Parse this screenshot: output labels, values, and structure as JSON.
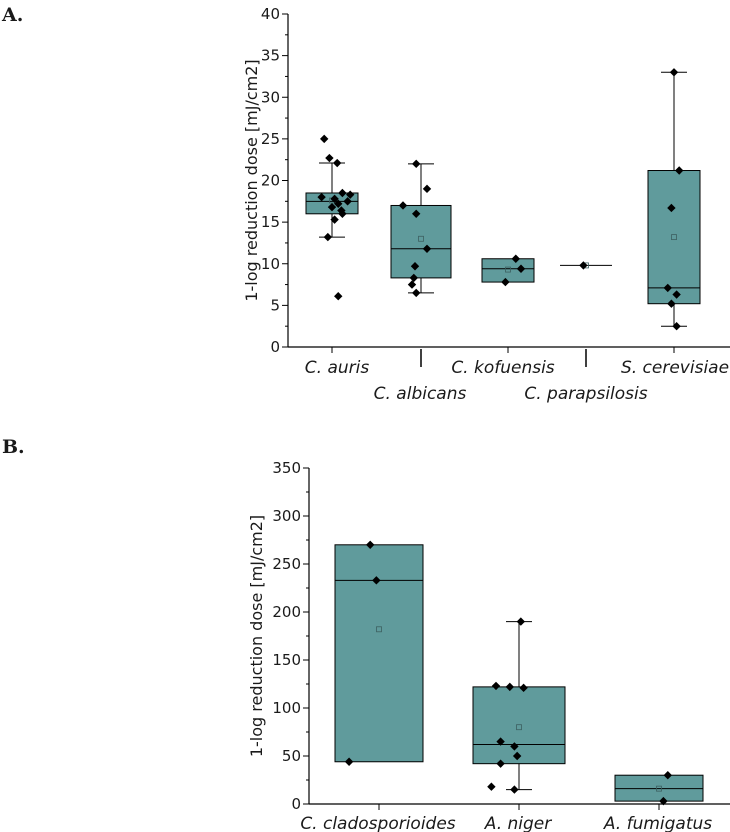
{
  "panels": [
    {
      "label": "A."
    },
    {
      "label": "B."
    }
  ],
  "colors": {
    "box_fill": "#609b9c",
    "stroke": "#000000",
    "mean_marker": "#3c5f60"
  },
  "chart_data": [
    {
      "type": "box",
      "panel": "A.",
      "ylabel": "1-log reduction dose [mJ/cm2]",
      "ylim": [
        0,
        40
      ],
      "yticks": [
        "0",
        "5",
        "10",
        "15",
        "20",
        "25",
        "30",
        "35",
        "40"
      ],
      "categories": [
        "C. auris",
        "C. albicans",
        "C. kofuensis",
        "C. parapsilosis",
        "S. cerevisiae"
      ],
      "label_row": [
        0,
        1,
        0,
        1,
        0
      ],
      "boxes": [
        {
          "q1": 16.0,
          "median": 17.5,
          "q3": 18.5,
          "whisker_low": 13.2,
          "whisker_high": 22.1,
          "mean": 17.6,
          "points": [
            25.0,
            22.7,
            22.1,
            18.5,
            18.3,
            18.0,
            17.8,
            17.5,
            17.2,
            16.8,
            16.4,
            16.0,
            15.3,
            13.2,
            6.1
          ],
          "point_offsets": [
            -0.15,
            -0.05,
            0.1,
            0.2,
            0.35,
            -0.2,
            0.05,
            0.3,
            0.12,
            0.0,
            0.18,
            0.2,
            0.05,
            -0.08,
            0.12
          ]
        },
        {
          "q1": 8.3,
          "median": 11.8,
          "q3": 17.0,
          "whisker_low": 6.5,
          "whisker_high": 22.0,
          "mean": 13.0,
          "points": [
            22.0,
            19.0,
            17.0,
            16.0,
            11.8,
            9.7,
            8.3,
            7.5,
            6.5
          ],
          "point_offsets": [
            -0.08,
            0.1,
            -0.3,
            -0.08,
            0.1,
            -0.1,
            -0.12,
            -0.15,
            -0.08
          ]
        },
        {
          "q1": 7.8,
          "median": 9.4,
          "q3": 10.6,
          "whisker_low": 7.8,
          "whisker_high": 10.6,
          "mean": 9.3,
          "points": [
            10.6,
            9.4,
            7.8
          ],
          "point_offsets": [
            0.15,
            0.25,
            -0.05
          ]
        },
        {
          "q1": 9.8,
          "median": 9.8,
          "q3": 9.8,
          "whisker_low": 9.8,
          "whisker_high": 9.8,
          "mean": 9.8,
          "points": [
            9.8
          ],
          "point_offsets": [
            -0.05
          ]
        },
        {
          "q1": 5.2,
          "median": 7.1,
          "q3": 21.2,
          "whisker_low": 2.5,
          "whisker_high": 33.0,
          "mean": 13.2,
          "points": [
            33.0,
            21.2,
            16.7,
            7.1,
            6.3,
            5.2,
            2.5
          ],
          "point_offsets": [
            0.0,
            0.1,
            -0.05,
            -0.12,
            0.05,
            -0.05,
            0.05
          ]
        }
      ]
    },
    {
      "type": "box",
      "panel": "B.",
      "ylabel": "1-log reduction dose [mJ/cm2]",
      "ylim": [
        0,
        350
      ],
      "yticks": [
        "0",
        "50",
        "100",
        "150",
        "200",
        "250",
        "300",
        "350"
      ],
      "categories": [
        "C. cladosporioides",
        "A. niger",
        "A. fumigatus"
      ],
      "label_row": [
        0,
        0,
        0
      ],
      "boxes": [
        {
          "q1": 44.0,
          "median": 233.0,
          "q3": 270.0,
          "whisker_low": 44.0,
          "whisker_high": 270.0,
          "mean": 182.0,
          "points": [
            270.0,
            233.0,
            44.0
          ],
          "point_offsets": [
            -0.1,
            -0.03,
            -0.34
          ]
        },
        {
          "q1": 42.0,
          "median": 62.0,
          "q3": 122.0,
          "whisker_low": 15.0,
          "whisker_high": 190.0,
          "mean": 80.0,
          "points": [
            190.0,
            123.0,
            122.0,
            121.0,
            65.0,
            60.0,
            50.0,
            42.0,
            18.0,
            15.0
          ],
          "point_offsets": [
            0.02,
            -0.25,
            -0.1,
            0.05,
            -0.2,
            -0.05,
            -0.02,
            -0.2,
            -0.3,
            -0.05
          ]
        },
        {
          "q1": 3.0,
          "median": 16.0,
          "q3": 30.0,
          "whisker_low": 3.0,
          "whisker_high": 30.0,
          "mean": 16.0,
          "points": [
            30.0,
            3.0
          ],
          "point_offsets": [
            0.1,
            0.05
          ]
        }
      ]
    }
  ]
}
